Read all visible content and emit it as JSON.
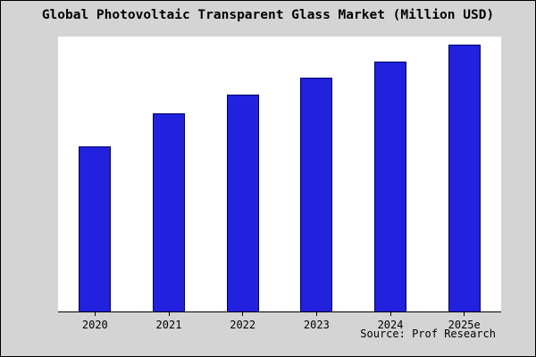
{
  "title": "Global Photovoltaic Transparent Glass Market (Million USD)",
  "source": "Source: Prof Research",
  "colors": {
    "background": "#d4d4d4",
    "plot_background": "#ffffff",
    "bar_fill": "#2121de",
    "bar_border": "#000066",
    "axis": "#000000"
  },
  "chart_data": {
    "type": "bar",
    "title": "Global Photovoltaic Transparent Glass Market (Million USD)",
    "categories": [
      "2020",
      "2021",
      "2022",
      "2023",
      "2024",
      "2025e"
    ],
    "values": [
      60,
      72,
      79,
      85,
      91,
      97
    ],
    "xlabel": "",
    "ylabel": "",
    "ylim": [
      0,
      100
    ],
    "grid": false,
    "legend": false
  }
}
